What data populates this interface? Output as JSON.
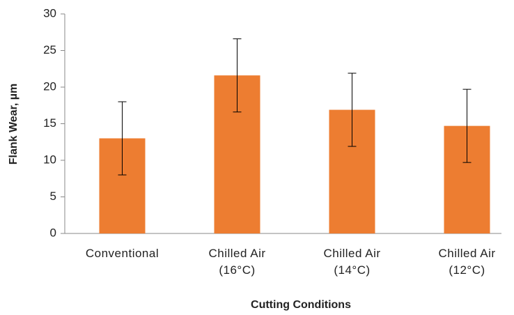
{
  "chart_data": {
    "type": "bar",
    "x_label": "Cutting Conditions",
    "y_label": "Flank Wear, µm",
    "categories": [
      "Conventional",
      "Chilled Air (16°C)",
      "Chilled Air (14°C)",
      "Chilled Air (12°C)"
    ],
    "values": [
      13,
      21.6,
      16.9,
      14.7
    ],
    "errors": [
      5,
      5,
      5,
      5
    ],
    "color": "#ed7d31",
    "ylim": [
      0,
      30
    ],
    "yticks": [
      0,
      5,
      10,
      15,
      20,
      25,
      30
    ],
    "grid": false
  }
}
